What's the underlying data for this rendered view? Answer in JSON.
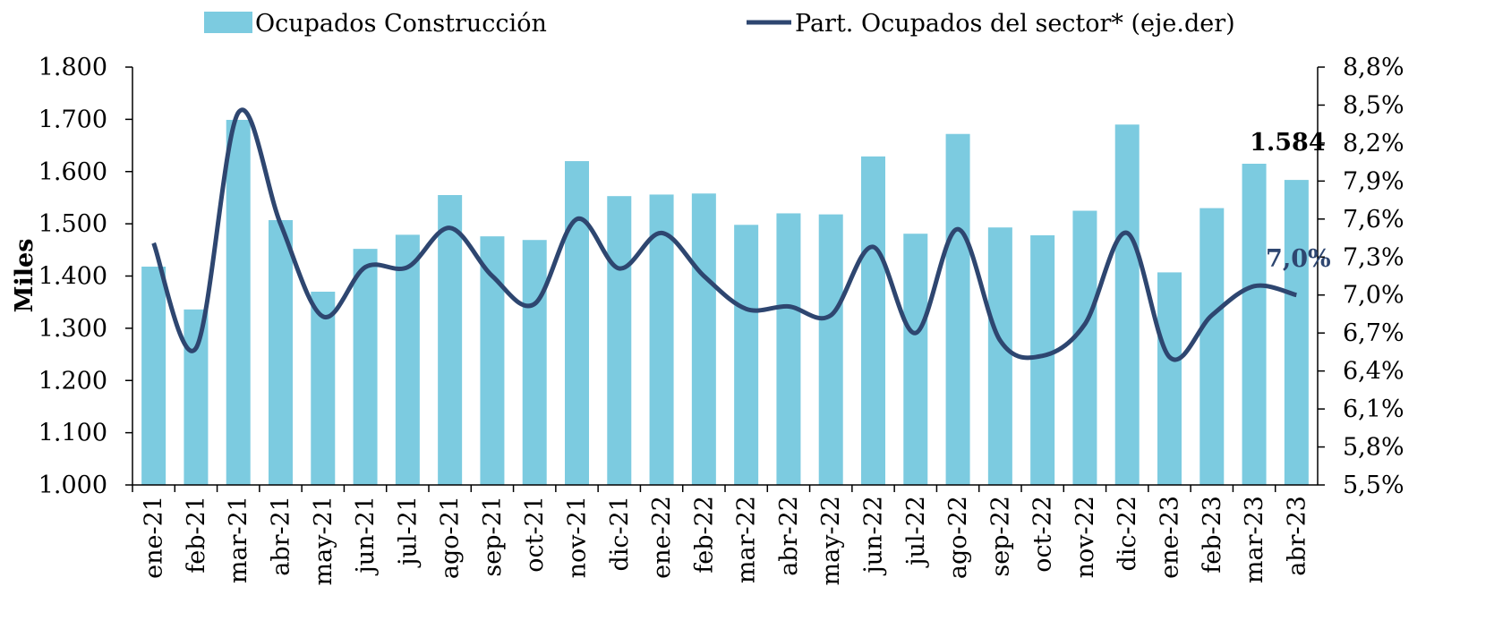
{
  "chart_data": {
    "type": "bar_line",
    "y_label": "Miles",
    "categories": [
      "ene-21",
      "feb-21",
      "mar-21",
      "abr-21",
      "may-21",
      "jun-21",
      "jul-21",
      "ago-21",
      "sep-21",
      "oct-21",
      "nov-21",
      "dic-21",
      "ene-22",
      "feb-22",
      "mar-22",
      "abr-22",
      "may-22",
      "jun-22",
      "jul-22",
      "ago-22",
      "sep-22",
      "oct-22",
      "nov-22",
      "dic-22",
      "ene-23",
      "feb-23",
      "mar-23",
      "abr-23"
    ],
    "series": [
      {
        "name": "Ocupados Construcción",
        "color": "#7ccbe0",
        "type": "bar",
        "values": [
          1418,
          1336,
          1699,
          1507,
          1370,
          1452,
          1479,
          1555,
          1476,
          1469,
          1620,
          1553,
          1556,
          1558,
          1498,
          1520,
          1518,
          1629,
          1481,
          1672,
          1493,
          1478,
          1525,
          1690,
          1407,
          1530,
          1615,
          1584
        ],
        "value_labels": {
          "27": "1.584"
        }
      },
      {
        "name": "Part. Ocupados del sector* (eje.der)",
        "color": "#2e4670",
        "type": "line",
        "axis": "y2",
        "values": [
          7.41,
          6.58,
          8.44,
          7.56,
          6.83,
          7.22,
          7.22,
          7.53,
          7.15,
          6.93,
          7.6,
          7.21,
          7.49,
          7.15,
          6.89,
          6.91,
          6.84,
          7.38,
          6.7,
          7.52,
          6.64,
          6.52,
          6.77,
          7.49,
          6.51,
          6.84,
          7.07,
          7.0
        ],
        "value_labels": {
          "27": "7,0%"
        }
      }
    ],
    "ylim": [
      1000,
      1800
    ],
    "yticks": [
      {
        "value": 1000,
        "label": "1.000"
      },
      {
        "value": 1100,
        "label": "1.100"
      },
      {
        "value": 1200,
        "label": "1.200"
      },
      {
        "value": 1300,
        "label": "1.300"
      },
      {
        "value": 1400,
        "label": "1.400"
      },
      {
        "value": 1500,
        "label": "1.500"
      },
      {
        "value": 1600,
        "label": "1.600"
      },
      {
        "value": 1700,
        "label": "1.700"
      },
      {
        "value": 1800,
        "label": "1.800"
      }
    ],
    "y2lim": [
      5.5,
      8.8
    ],
    "y2ticks": [
      {
        "value": 5.5,
        "label": "5,5%"
      },
      {
        "value": 5.8,
        "label": "5,8%"
      },
      {
        "value": 6.1,
        "label": "6,1%"
      },
      {
        "value": 6.4,
        "label": "6,4%"
      },
      {
        "value": 6.7,
        "label": "6,7%"
      },
      {
        "value": 7.0,
        "label": "7,0%"
      },
      {
        "value": 7.3,
        "label": "7,3%"
      },
      {
        "value": 7.6,
        "label": "7,6%"
      },
      {
        "value": 7.9,
        "label": "7,9%"
      },
      {
        "value": 8.2,
        "label": "8,2%"
      },
      {
        "value": 8.5,
        "label": "8,5%"
      },
      {
        "value": 8.8,
        "label": "8,8%"
      }
    ],
    "legend": "top"
  }
}
